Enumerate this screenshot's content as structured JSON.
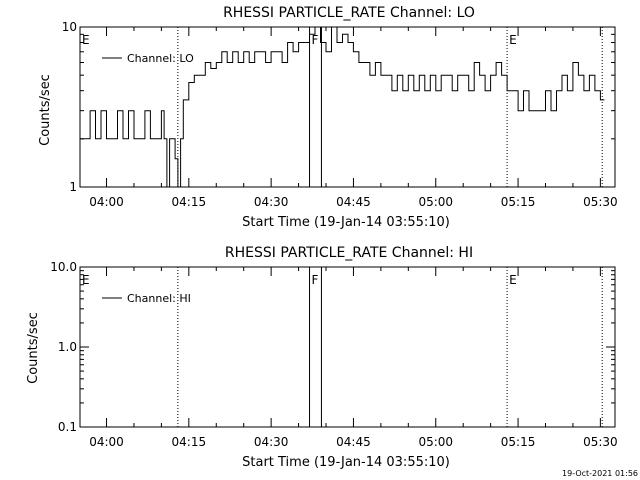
{
  "footer_timestamp": "19-Oct-2021 01:56",
  "chart_data": [
    {
      "type": "line",
      "title": "RHESSI PARTICLE_RATE Channel: LO",
      "xlabel": "Start Time (19-Jan-14 03:55:10)",
      "ylabel": "Counts/sec",
      "yscale": "log",
      "ylim": [
        1,
        10
      ],
      "xlim": [
        "03:55:10",
        "05:32:40"
      ],
      "x_ticks": [
        "04:00",
        "04:15",
        "04:30",
        "04:45",
        "05:00",
        "05:15",
        "05:30"
      ],
      "y_ticks": [
        "1",
        "10"
      ],
      "legend": "top-left",
      "series": [
        {
          "name": "Channel: LO",
          "color": "#000000",
          "x": [
            "03:55:10",
            "03:57:00",
            "03:58:00",
            "03:59:00",
            "04:00:00",
            "04:01:00",
            "04:02:00",
            "04:03:00",
            "04:04:00",
            "04:05:00",
            "04:06:00",
            "04:07:00",
            "04:08:00",
            "04:09:00",
            "04:10:00",
            "04:10:30",
            "04:11:00",
            "04:11:30",
            "04:12:00",
            "04:12:30",
            "04:13:00",
            "04:13:30",
            "04:14:00",
            "04:15:00",
            "04:16:00",
            "04:17:00",
            "04:18:00",
            "04:19:00",
            "04:20:00",
            "04:21:00",
            "04:22:00",
            "04:23:00",
            "04:24:00",
            "04:25:00",
            "04:26:00",
            "04:27:00",
            "04:28:00",
            "04:29:00",
            "04:30:00",
            "04:31:00",
            "04:32:00",
            "04:33:00",
            "04:34:00",
            "04:35:00",
            "04:36:00",
            "04:37:00",
            "04:38:00",
            "04:39:00",
            "04:40:00",
            "04:41:00",
            "04:42:00",
            "04:43:00",
            "04:44:00",
            "04:45:00",
            "04:46:00",
            "04:47:00",
            "04:48:00",
            "04:49:00",
            "04:50:00",
            "04:51:00",
            "04:52:00",
            "04:53:00",
            "04:54:00",
            "04:55:00",
            "04:56:00",
            "04:57:00",
            "04:58:00",
            "04:59:00",
            "05:00:00",
            "05:01:00",
            "05:02:00",
            "05:03:00",
            "05:04:00",
            "05:05:00",
            "05:06:00",
            "05:07:00",
            "05:08:00",
            "05:09:00",
            "05:10:00",
            "05:11:00",
            "05:12:00",
            "05:13:00",
            "05:14:00",
            "05:15:00",
            "05:16:00",
            "05:17:00",
            "05:18:00",
            "05:19:00",
            "05:20:00",
            "05:21:00",
            "05:22:00",
            "05:23:00",
            "05:24:00",
            "05:25:00",
            "05:26:00",
            "05:27:00",
            "05:28:00",
            "05:29:00",
            "05:30:00"
          ],
          "y": [
            2,
            3,
            2,
            3,
            2,
            2,
            3,
            2,
            3,
            2,
            2,
            3,
            2,
            2,
            3,
            2,
            1,
            2,
            2,
            1.5,
            1,
            2,
            3.5,
            4.5,
            5,
            5,
            6,
            5.5,
            6,
            7,
            6,
            7,
            6,
            7,
            6,
            7,
            7,
            6,
            7,
            7,
            6,
            8,
            7,
            8,
            8,
            9,
            10,
            8,
            7,
            10,
            8,
            9,
            8,
            7,
            6,
            6,
            5,
            6,
            5,
            5,
            4,
            5,
            4,
            5,
            4,
            5,
            4,
            5,
            4,
            5,
            5,
            4,
            5,
            5,
            4,
            6,
            5,
            4,
            5,
            6,
            5,
            4,
            4,
            3,
            4,
            3,
            3,
            3,
            4,
            3,
            4,
            5,
            4,
            6,
            5,
            4,
            5,
            4,
            3.5
          ]
        }
      ],
      "markers": [
        {
          "label": "E",
          "x": "03:55:10",
          "line": false
        },
        {
          "label": "F",
          "x": "04:37:00",
          "line": false
        },
        {
          "label": "E",
          "x": "05:13:00",
          "line": true
        }
      ],
      "vlines_solid": [
        "04:37:00",
        "04:39:10"
      ],
      "vlines_dotted": [
        "04:13:00",
        "05:13:00",
        "05:30:20"
      ]
    },
    {
      "type": "line",
      "title": "RHESSI PARTICLE_RATE Channel: HI",
      "xlabel": "Start Time (19-Jan-14 03:55:10)",
      "ylabel": "Counts/sec",
      "yscale": "log",
      "ylim": [
        0.1,
        10
      ],
      "xlim": [
        "03:55:10",
        "05:32:40"
      ],
      "x_ticks": [
        "04:00",
        "04:15",
        "04:30",
        "04:45",
        "05:00",
        "05:15",
        "05:30"
      ],
      "y_ticks": [
        "0.1",
        "1.0",
        "10.0"
      ],
      "legend": "top-left",
      "series": [
        {
          "name": "Channel: HI",
          "color": "#000000",
          "x": [],
          "y": []
        }
      ],
      "markers": [
        {
          "label": "E",
          "x": "03:55:10",
          "line": false
        },
        {
          "label": "F",
          "x": "04:37:00",
          "line": false
        },
        {
          "label": "E",
          "x": "05:13:00",
          "line": false
        }
      ],
      "vlines_solid": [
        "04:37:00",
        "04:39:10"
      ],
      "vlines_dotted": [
        "04:13:00",
        "05:13:00",
        "05:30:20"
      ]
    }
  ]
}
